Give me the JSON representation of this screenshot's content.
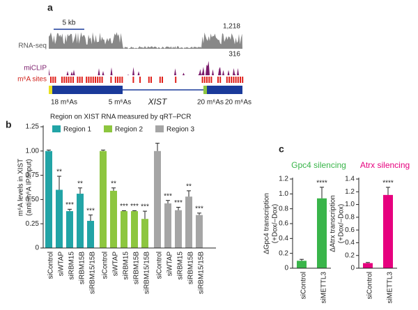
{
  "panel_labels": [
    "a",
    "b",
    "c"
  ],
  "panel_a": {
    "scale_bar": "5 kb",
    "tracks": [
      "RNA-seq",
      "miCLIP",
      "m⁶A sites"
    ],
    "max_labels": [
      "1,218",
      "316"
    ],
    "gene_labels": [
      "18 m⁶As",
      "5 m⁶As",
      "XIST",
      "20 m⁶As",
      "20 m⁶As"
    ]
  },
  "chart_data": [
    {
      "type": "bar",
      "legend_title": "Region on XIST RNA measured by qRT–PCR",
      "y_label": [
        "m⁶A levels in XIST",
        "(anti-m⁶A IP/input)"
      ],
      "categories": [
        "siControl",
        "siWTAP",
        "siRBM15",
        "siRBM15B",
        "siRBM15/15B"
      ],
      "series": [
        {
          "name": "Region 1",
          "color": "#22a4a6",
          "values": [
            1.0,
            0.6,
            0.38,
            0.56,
            0.28
          ],
          "errors": [
            0.01,
            0.14,
            0.02,
            0.06,
            0.06
          ],
          "significance": [
            null,
            "**",
            "***",
            "**",
            "***"
          ]
        },
        {
          "name": "Region 2",
          "color": "#8dc63f",
          "values": [
            1.0,
            0.59,
            0.38,
            0.38,
            0.3
          ],
          "errors": [
            0.01,
            0.03,
            0.005,
            0.005,
            0.08
          ],
          "significance": [
            null,
            "**",
            "***",
            "***",
            "***"
          ]
        },
        {
          "name": "Region 3",
          "color": "#a5a5a5",
          "values": [
            1.0,
            0.46,
            0.39,
            0.53,
            0.34
          ],
          "errors": [
            0.08,
            0.03,
            0.03,
            0.06,
            0.02
          ],
          "significance": [
            null,
            "***",
            "***",
            "**",
            "***"
          ]
        }
      ],
      "ylim": [
        0,
        1.25
      ],
      "yticks": [
        0,
        0.25,
        {
          "value": 0.5,
          "label": "0.50"
        },
        0.75,
        {
          "value": 1,
          "label": "1.00"
        },
        1.25
      ]
    },
    {
      "type": "bar",
      "title": "Gpc4 silencing",
      "title_color": "#39b54a",
      "y_label": [
        "ΔGpc4 transcription",
        "(+Dox/–Dox)"
      ],
      "categories": [
        "siControl",
        "siMETTL3"
      ],
      "color": "#39b54a",
      "values": [
        0.1,
        0.94
      ],
      "errors": [
        0.02,
        0.15
      ],
      "significance": [
        null,
        "****"
      ],
      "ylim": [
        0,
        1.2
      ],
      "yticks": [
        0,
        0.2,
        0.4,
        0.6,
        0.8,
        {
          "value": 1,
          "label": "1.0"
        },
        1.2
      ]
    },
    {
      "type": "bar",
      "title": "Atrx silencing",
      "title_color": "#e6007e",
      "y_label": [
        "ΔAtrx transcription",
        "(+Dox/–Dox)"
      ],
      "categories": [
        "siControl",
        "siMETTL3"
      ],
      "color": "#e6007e",
      "values": [
        0.08,
        1.15
      ],
      "errors": [
        0.01,
        0.12
      ],
      "significance": [
        null,
        "****"
      ],
      "ylim": [
        0,
        1.4
      ],
      "yticks": [
        0,
        0.2,
        0.4,
        0.6,
        0.8,
        {
          "value": 1,
          "label": "1.0"
        },
        1.2,
        1.4
      ]
    }
  ]
}
